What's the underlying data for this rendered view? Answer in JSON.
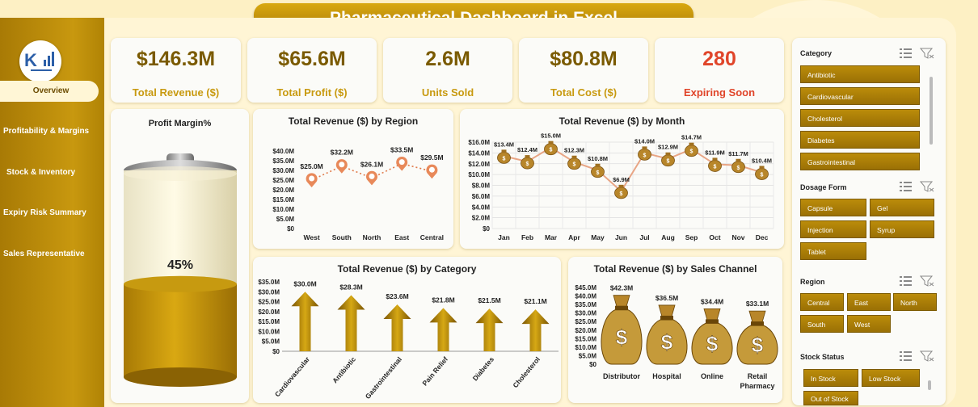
{
  "title": "Pharmaceutical Dashboard in Excel",
  "nav": [
    {
      "label": "Overview",
      "active": true
    },
    {
      "label": "Profitability & Margins",
      "active": false
    },
    {
      "label": "Stock & Inventory",
      "active": false
    },
    {
      "label": "Expiry Risk Summary",
      "active": false
    },
    {
      "label": "Sales Representative",
      "active": false
    }
  ],
  "kpis": [
    {
      "value": "$146.3M",
      "label": "Total Revenue ($)",
      "color": "#7a5a00"
    },
    {
      "value": "$65.6M",
      "label": "Total Profit ($)",
      "color": "#7a5a00"
    },
    {
      "value": "2.6M",
      "label": "Units Sold",
      "color": "#7a5a00"
    },
    {
      "value": "$80.8M",
      "label": "Total Cost ($)",
      "color": "#7a5a00"
    },
    {
      "value": "280",
      "label": "Expiring Soon",
      "color": "#e0452a"
    }
  ],
  "profit_margin": {
    "title": "Profit Margin%",
    "value_label": "45%",
    "fraction": 0.45
  },
  "chart_data": [
    {
      "type": "line",
      "title": "Total Revenue ($) by Region",
      "categories": [
        "West",
        "South",
        "North",
        "East",
        "Central"
      ],
      "values": [
        25.0,
        32.2,
        26.1,
        33.5,
        29.5
      ],
      "data_labels": [
        "$25.0M",
        "$32.2M",
        "$26.1M",
        "$33.5M",
        "$29.5M"
      ],
      "yticks": [
        "$0",
        "$5.0M",
        "$10.0M",
        "$15.0M",
        "$20.0M",
        "$25.0M",
        "$30.0M",
        "$35.0M",
        "$40.0M"
      ],
      "ylim": [
        0,
        40
      ]
    },
    {
      "type": "line",
      "title": "Total Revenue ($) by Month",
      "categories": [
        "Jan",
        "Feb",
        "Mar",
        "Apr",
        "May",
        "Jun",
        "Jul",
        "Aug",
        "Sep",
        "Oct",
        "Nov",
        "Dec"
      ],
      "values": [
        13.4,
        12.4,
        15.0,
        12.3,
        10.8,
        6.9,
        14.0,
        12.9,
        14.7,
        11.9,
        11.7,
        10.4
      ],
      "data_labels": [
        "$13.4M",
        "$12.4M",
        "$15.0M",
        "$12.3M",
        "$10.8M",
        "$6.9M",
        "$14.0M",
        "$12.9M",
        "$14.7M",
        "$11.9M",
        "$11.7M",
        "$10.4M"
      ],
      "yticks": [
        "$0",
        "$2.0M",
        "$4.0M",
        "$6.0M",
        "$8.0M",
        "$10.0M",
        "$12.0M",
        "$14.0M",
        "$16.0M"
      ],
      "ylim": [
        0,
        16
      ],
      "grid": true
    },
    {
      "type": "bar",
      "title": "Total Revenue ($) by Category",
      "categories": [
        "Cardiovascular",
        "Antibiotic",
        "Gastrointestinal",
        "Pain Relief",
        "Diabetes",
        "Cholesterol"
      ],
      "values": [
        30.0,
        28.3,
        23.6,
        21.8,
        21.5,
        21.1
      ],
      "data_labels": [
        "$30.0M",
        "$28.3M",
        "$23.6M",
        "$21.8M",
        "$21.5M",
        "$21.1M"
      ],
      "yticks": [
        "$0",
        "$5.0M",
        "$10.0M",
        "$15.0M",
        "$20.0M",
        "$25.0M",
        "$30.0M",
        "$35.0M"
      ],
      "ylim": [
        0,
        35
      ]
    },
    {
      "type": "bar",
      "title": "Total Revenue ($) by Sales Channel",
      "categories": [
        "Distributor",
        "Hospital",
        "Online",
        "Retail Pharmacy"
      ],
      "values": [
        42.3,
        36.5,
        34.4,
        33.1
      ],
      "data_labels": [
        "$42.3M",
        "$36.5M",
        "$34.4M",
        "$33.1M"
      ],
      "yticks": [
        "$0",
        "$5.0M",
        "$10.0M",
        "$15.0M",
        "$20.0M",
        "$25.0M",
        "$30.0M",
        "$35.0M",
        "$40.0M",
        "$45.0M"
      ],
      "ylim": [
        0,
        45
      ]
    }
  ],
  "slicers": {
    "category": {
      "title": "Category",
      "items": [
        "Antibiotic",
        "Cardiovascular",
        "Cholesterol",
        "Diabetes",
        "Gastrointestinal"
      ]
    },
    "dosage": {
      "title": "Dosage Form",
      "items": [
        "Capsule",
        "Gel",
        "Injection",
        "Syrup",
        "Tablet"
      ]
    },
    "region": {
      "title": "Region",
      "items": [
        "Central",
        "East",
        "North",
        "South",
        "West"
      ]
    },
    "stock": {
      "title": "Stock Status",
      "items": [
        "In Stock",
        "Low Stock",
        "Out of Stock"
      ]
    }
  },
  "colors": {
    "gold": "#c89a10",
    "dark_gold": "#7a5a00",
    "accent_red": "#e0452a"
  }
}
